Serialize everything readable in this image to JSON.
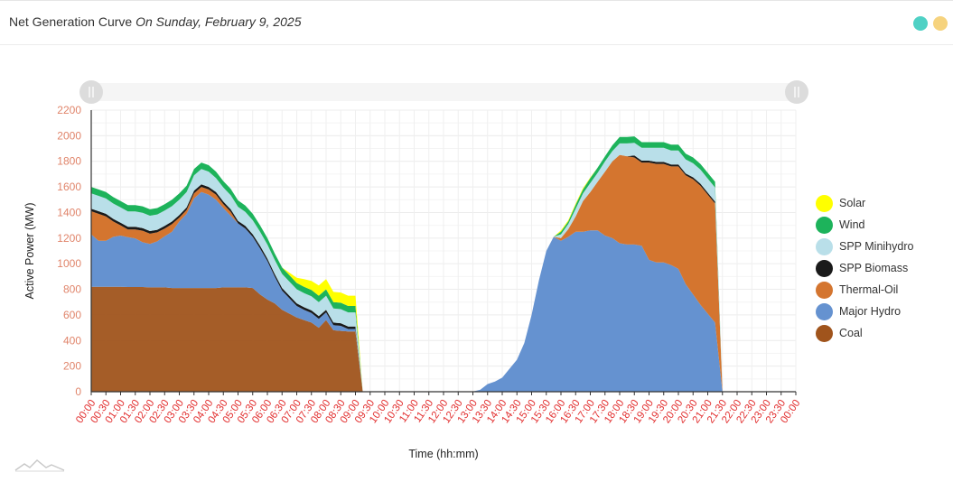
{
  "header": {
    "title": "Net Generation Curve",
    "date_text": "On Sunday, February 9, 2025",
    "dot_colors": [
      "#4fd1c5",
      "#f6d37e"
    ]
  },
  "chart_data": {
    "type": "area",
    "stacked": true,
    "xlabel": "Time (hh:mm)",
    "ylabel": "Active Power (MW)",
    "ylim": [
      0,
      2200
    ],
    "yticks": [
      0,
      200,
      400,
      600,
      800,
      1000,
      1200,
      1400,
      1600,
      1800,
      2000,
      2200
    ],
    "xticks": [
      "00:00",
      "00:30",
      "01:00",
      "01:30",
      "02:00",
      "02:30",
      "03:00",
      "03:30",
      "04:00",
      "04:30",
      "05:00",
      "05:30",
      "06:00",
      "06:30",
      "07:00",
      "07:30",
      "08:00",
      "08:30",
      "09:00",
      "09:30",
      "10:00",
      "10:30",
      "11:00",
      "11:30",
      "12:00",
      "12:30",
      "13:00",
      "13:30",
      "14:00",
      "14:30",
      "15:00",
      "15:30",
      "16:00",
      "16:30",
      "17:00",
      "17:30",
      "18:00",
      "18:30",
      "19:00",
      "19:30",
      "20:00",
      "20:30",
      "21:00",
      "21:30",
      "22:00",
      "22:30",
      "23:00",
      "23:30",
      "00:00"
    ],
    "x": [
      0,
      0.25,
      0.5,
      0.75,
      1,
      1.25,
      1.5,
      1.75,
      2,
      2.25,
      2.5,
      2.75,
      3,
      3.25,
      3.5,
      3.75,
      4,
      4.25,
      4.5,
      4.75,
      5,
      5.25,
      5.5,
      5.75,
      6,
      6.25,
      6.5,
      6.75,
      7,
      7.25,
      7.5,
      7.75,
      8,
      8.25,
      8.5,
      8.75,
      9,
      9.25,
      9.5,
      9.75,
      10,
      10.25,
      10.5,
      10.6,
      10.75,
      11,
      11.5,
      12,
      12.5,
      13,
      13.25,
      13.5,
      13.75,
      14,
      14.25,
      14.5,
      14.75,
      15,
      15.25,
      15.5,
      15.75,
      16,
      16.25,
      16.5,
      16.75,
      17,
      17.25,
      17.5,
      17.75,
      18,
      18.25,
      18.5,
      18.75,
      19,
      19.25,
      19.5,
      19.75,
      20,
      20.25,
      20.5,
      20.75,
      21,
      21.25,
      21.5,
      21.75,
      22,
      22.25,
      22.5,
      22.75,
      23,
      23.25,
      23.5
    ],
    "series": [
      {
        "name": "Coal",
        "color": "#a0541c",
        "values": [
          820,
          820,
          820,
          820,
          820,
          818,
          818,
          818,
          815,
          815,
          815,
          810,
          810,
          810,
          810,
          810,
          810,
          810,
          815,
          815,
          815,
          815,
          810,
          760,
          720,
          690,
          640,
          610,
          580,
          560,
          540,
          500,
          560,
          480,
          475,
          470,
          470,
          0,
          0,
          0,
          0,
          0,
          0,
          0,
          0,
          0,
          0,
          0,
          0,
          0,
          0,
          0,
          0,
          0,
          0,
          0,
          0,
          0,
          0,
          0,
          0,
          0,
          0,
          0,
          0,
          0,
          0,
          0,
          0,
          0,
          0,
          0,
          0,
          0,
          0,
          0,
          0,
          0,
          0,
          0,
          0,
          0,
          0,
          0,
          0,
          0,
          0,
          0,
          0,
          0,
          0,
          0
        ]
      },
      {
        "name": "Major Hydro",
        "color": "#6592d0",
        "values": [
          410,
          360,
          360,
          390,
          400,
          390,
          380,
          350,
          340,
          360,
          400,
          440,
          520,
          580,
          700,
          750,
          730,
          690,
          620,
          560,
          500,
          460,
          400,
          360,
          300,
          210,
          150,
          120,
          90,
          80,
          75,
          70,
          60,
          40,
          40,
          20,
          20,
          0,
          0,
          0,
          0,
          0,
          0,
          0,
          0,
          0,
          0,
          0,
          0,
          2,
          15,
          60,
          80,
          110,
          180,
          250,
          380,
          600,
          870,
          1100,
          1210,
          1180,
          1210,
          1250,
          1250,
          1260,
          1260,
          1220,
          1200,
          1160,
          1150,
          1150,
          1140,
          1030,
          1010,
          1010,
          990,
          960,
          840,
          760,
          680,
          610,
          540,
          0,
          0,
          0,
          0,
          0,
          0,
          0,
          0,
          0
        ]
      },
      {
        "name": "Thermal-Oil",
        "color": "#d4752f",
        "values": [
          180,
          210,
          190,
          120,
          80,
          60,
          70,
          90,
          80,
          70,
          60,
          60,
          30,
          30,
          40,
          40,
          40,
          40,
          30,
          30,
          0,
          0,
          0,
          0,
          0,
          0,
          0,
          0,
          0,
          0,
          0,
          0,
          0,
          0,
          0,
          0,
          0,
          0,
          0,
          0,
          0,
          0,
          0,
          0,
          0,
          0,
          0,
          0,
          0,
          0,
          0,
          0,
          0,
          0,
          0,
          0,
          0,
          0,
          0,
          0,
          0,
          20,
          60,
          120,
          240,
          300,
          380,
          500,
          600,
          690,
          690,
          680,
          650,
          760,
          770,
          770,
          770,
          800,
          850,
          900,
          930,
          930,
          930,
          0,
          0,
          0,
          0,
          0,
          0,
          0,
          0,
          0
        ]
      },
      {
        "name": "SPP Biomass",
        "color": "#1a1a1a",
        "values": [
          20,
          20,
          20,
          20,
          20,
          20,
          20,
          20,
          20,
          20,
          20,
          20,
          20,
          20,
          20,
          20,
          20,
          20,
          20,
          20,
          20,
          20,
          20,
          20,
          20,
          20,
          20,
          20,
          20,
          20,
          20,
          20,
          20,
          20,
          20,
          20,
          20,
          0,
          0,
          0,
          0,
          0,
          0,
          0,
          0,
          0,
          0,
          0,
          0,
          0,
          0,
          0,
          0,
          0,
          0,
          0,
          0,
          0,
          0,
          0,
          0,
          0,
          0,
          0,
          0,
          0,
          0,
          0,
          0,
          0,
          0,
          15,
          15,
          15,
          15,
          15,
          15,
          15,
          15,
          15,
          15,
          15,
          15,
          0,
          0,
          0,
          0,
          0,
          0,
          0,
          0,
          0
        ]
      },
      {
        "name": "SPP Minihydro",
        "color": "#b9dfe9",
        "values": [
          120,
          120,
          120,
          120,
          120,
          120,
          120,
          120,
          120,
          120,
          120,
          120,
          120,
          120,
          120,
          120,
          120,
          110,
          110,
          110,
          110,
          110,
          110,
          110,
          110,
          110,
          110,
          110,
          110,
          110,
          110,
          110,
          110,
          110,
          110,
          110,
          110,
          0,
          0,
          0,
          0,
          0,
          0,
          0,
          0,
          0,
          0,
          0,
          0,
          0,
          0,
          0,
          0,
          0,
          0,
          0,
          0,
          0,
          0,
          0,
          0,
          30,
          40,
          60,
          60,
          70,
          70,
          80,
          80,
          90,
          100,
          100,
          100,
          100,
          110,
          110,
          110,
          110,
          110,
          110,
          110,
          110,
          110,
          0,
          0,
          0,
          0,
          0,
          0,
          0,
          0,
          0
        ]
      },
      {
        "name": "Wind",
        "color": "#1db35b",
        "values": [
          50,
          50,
          50,
          50,
          50,
          50,
          50,
          50,
          50,
          50,
          50,
          50,
          50,
          50,
          50,
          50,
          50,
          50,
          50,
          50,
          50,
          50,
          50,
          50,
          50,
          50,
          50,
          50,
          50,
          50,
          50,
          50,
          50,
          50,
          50,
          50,
          50,
          0,
          0,
          0,
          0,
          0,
          0,
          0,
          0,
          0,
          0,
          0,
          0,
          0,
          0,
          0,
          0,
          0,
          0,
          0,
          0,
          0,
          0,
          0,
          0,
          20,
          20,
          30,
          30,
          40,
          40,
          40,
          45,
          50,
          50,
          50,
          45,
          45,
          45,
          45,
          45,
          45,
          45,
          45,
          45,
          45,
          45,
          0,
          0,
          0,
          0,
          0,
          0,
          0,
          0,
          0
        ]
      },
      {
        "name": "Solar",
        "color": "#ffff00",
        "values": [
          0,
          0,
          0,
          0,
          0,
          0,
          0,
          0,
          0,
          0,
          0,
          0,
          0,
          0,
          0,
          0,
          0,
          0,
          0,
          0,
          0,
          0,
          0,
          0,
          0,
          0,
          0,
          20,
          40,
          60,
          70,
          80,
          80,
          80,
          80,
          80,
          80,
          0,
          0,
          0,
          0,
          0,
          0,
          0,
          0,
          0,
          0,
          0,
          0,
          0,
          0,
          0,
          0,
          0,
          0,
          0,
          0,
          0,
          0,
          0,
          0,
          10,
          10,
          10,
          10,
          5,
          0,
          0,
          0,
          0,
          0,
          0,
          0,
          0,
          0,
          0,
          0,
          0,
          0,
          0,
          0,
          0,
          0,
          0,
          0,
          0,
          0,
          0,
          0,
          0,
          0,
          0
        ]
      }
    ],
    "legend_order": [
      "Solar",
      "Wind",
      "SPP Minihydro",
      "SPP Biomass",
      "Thermal-Oil",
      "Major Hydro",
      "Coal"
    ],
    "legend_position": "right",
    "grid": true
  }
}
